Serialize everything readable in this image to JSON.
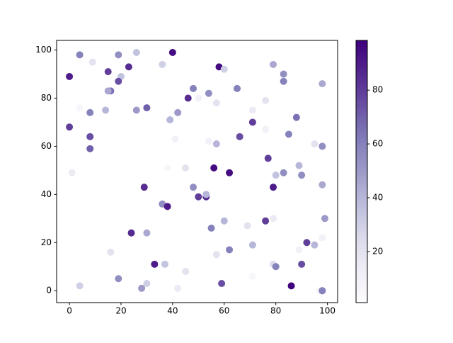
{
  "chart_data": {
    "type": "scatter",
    "colormap": "Purples",
    "x": [
      0,
      4,
      9,
      19,
      26,
      40,
      15,
      23,
      20,
      19,
      16,
      15,
      14,
      8,
      4,
      0,
      8,
      8,
      1,
      36,
      58,
      60,
      79,
      83,
      83,
      98,
      46,
      48,
      54,
      65,
      50,
      57,
      30,
      26,
      42,
      39,
      41,
      71,
      76,
      71,
      76,
      88,
      66,
      85,
      57,
      54,
      95,
      98,
      77,
      89,
      80,
      83,
      90,
      98,
      56,
      62,
      38,
      45,
      29,
      48,
      50,
      53,
      53,
      36,
      38,
      79,
      76,
      55,
      60,
      69,
      79,
      99,
      98,
      92,
      95,
      71,
      62,
      57,
      89,
      24,
      30,
      16,
      33,
      37,
      45,
      79,
      80,
      90,
      19,
      28,
      30,
      42,
      59,
      71,
      86,
      97,
      98,
      98,
      4
    ],
    "y": [
      89,
      98,
      95,
      98,
      99,
      99,
      91,
      93,
      89,
      87,
      83,
      83,
      75,
      74,
      76,
      68,
      64,
      59,
      49,
      94,
      93,
      92,
      94,
      90,
      87,
      86,
      80,
      84,
      82,
      84,
      80,
      78,
      76,
      75,
      74,
      71,
      63,
      75,
      79,
      70,
      67,
      72,
      64,
      65,
      61,
      62,
      61,
      60,
      55,
      52,
      48,
      49,
      48,
      44,
      51,
      49,
      51,
      51,
      43,
      43,
      39,
      39,
      40,
      36,
      35,
      43,
      29,
      26,
      29,
      27,
      30,
      30,
      22,
      20,
      19,
      19,
      17,
      15,
      17,
      24,
      24,
      16,
      11,
      11,
      8,
      11,
      10,
      11,
      5,
      1,
      3,
      1,
      3,
      6,
      2,
      0,
      0,
      0,
      2
    ],
    "c": [
      90,
      60,
      20,
      55,
      35,
      95,
      80,
      85,
      35,
      75,
      65,
      45,
      40,
      60,
      5,
      80,
      75,
      70,
      15,
      30,
      95,
      30,
      45,
      55,
      60,
      45,
      85,
      60,
      55,
      60,
      10,
      20,
      70,
      50,
      50,
      40,
      10,
      15,
      20,
      80,
      10,
      65,
      75,
      60,
      40,
      10,
      20,
      55,
      80,
      40,
      35,
      55,
      55,
      45,
      95,
      95,
      5,
      20,
      85,
      55,
      80,
      85,
      40,
      55,
      90,
      90,
      80,
      60,
      40,
      20,
      15,
      50,
      10,
      80,
      40,
      40,
      60,
      20,
      10,
      85,
      45,
      20,
      90,
      35,
      20,
      25,
      60,
      75,
      55,
      50,
      30,
      15,
      75,
      5,
      98,
      5,
      75,
      60,
      30
    ],
    "xlim": [
      -4.95,
      103.95
    ],
    "ylim": [
      -4.95,
      104.0
    ],
    "xticks": [
      0,
      20,
      40,
      60,
      80,
      100
    ],
    "yticks": [
      0,
      20,
      40,
      60,
      80,
      100
    ],
    "clim": [
      1,
      98.5
    ],
    "cticks": [
      20,
      40,
      60,
      80
    ]
  }
}
